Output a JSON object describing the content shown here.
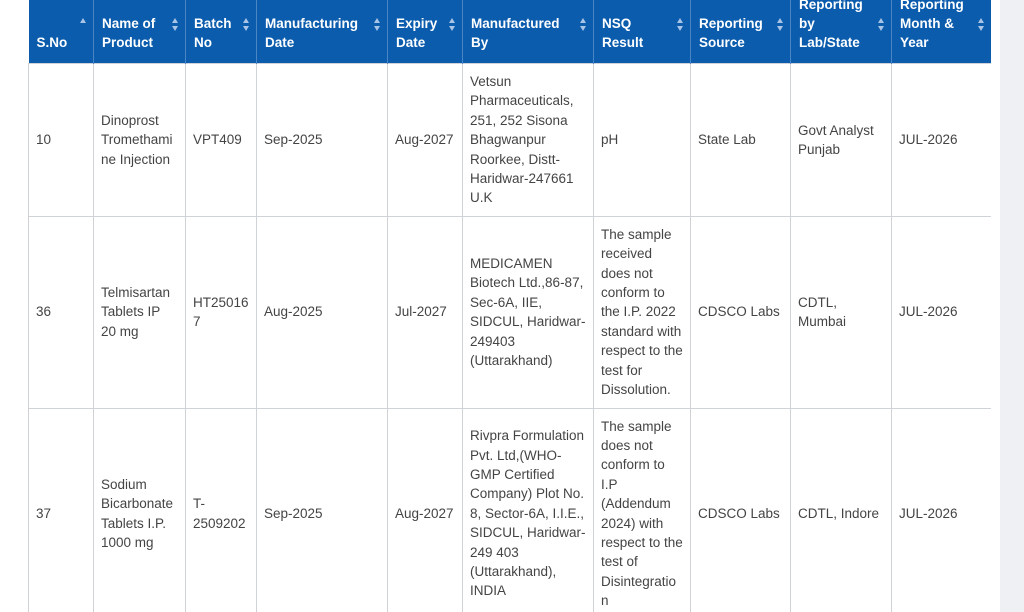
{
  "table": {
    "columns": [
      "S.No",
      "Name of Product",
      "Batch No",
      "Manufacturing Date",
      "Expiry Date",
      "Manufactured By",
      "NSQ Result",
      "Reporting Source",
      "Reporting by Lab/State",
      "Reporting Month & Year"
    ],
    "rows": [
      [
        "10",
        "Dinoprost Tromethamine Injection",
        "VPT409",
        "Sep-2025",
        "Aug-2027",
        "Vetsun Pharmaceuticals, 251, 252 Sisona Bhagwanpur Roorkee, Distt- Haridwar-247661 U.K",
        "pH",
        "State Lab",
        "Govt Analyst Punjab",
        "JUL-2026"
      ],
      [
        "36",
        "Telmisartan Tablets IP 20 mg",
        "HT250167",
        "Aug-2025",
        "Jul-2027",
        "MEDICAMEN Biotech Ltd.,86-87, Sec-6A, IIE, SIDCUL, Haridwar-249403 (Uttarakhand)",
        "The sample received does not conform to the I.P. 2022 standard with respect to the test for Dissolution.",
        "CDSCO Labs",
        "CDTL, Mumbai",
        "JUL-2026"
      ],
      [
        "37",
        "Sodium Bicarbonate Tablets I.P. 1000 mg",
        "T-2509202",
        "Sep-2025",
        "Aug-2027",
        "Rivpra Formulation Pvt. Ltd,(WHO-GMP Certified Company) Plot No. 8, Sector-6A, I.I.E., SIDCUL, Haridwar-249 403 (Uttarakhand), INDIA",
        "The sample does not conform to I.P (Addendum 2024) with respect to the test of Disintegration",
        "CDSCO Labs",
        "CDTL, Indore",
        "JUL-2026"
      ]
    ]
  }
}
